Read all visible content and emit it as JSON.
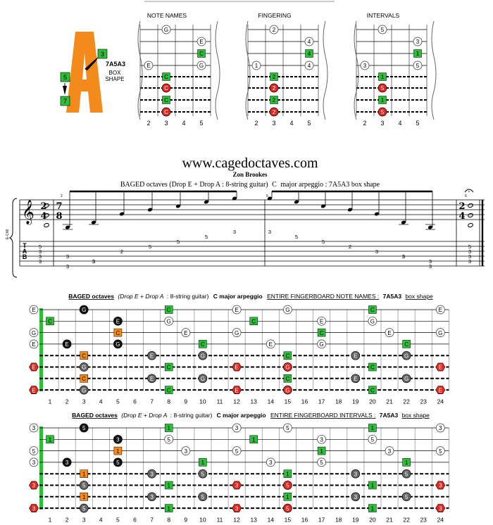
{
  "logo": {
    "letter": "A",
    "shape_name": "7A5A3",
    "box_line1": "BOX",
    "box_line2": "SHAPE",
    "markers": [
      "3",
      "5",
      "7"
    ]
  },
  "top_diagrams": {
    "headers": [
      "NOTE NAMES",
      "FINGERING",
      "INTERVALS"
    ],
    "fret_numbers": [
      "2",
      "3",
      "4",
      "5"
    ],
    "note_names": {
      "top": [
        "G",
        "E",
        "C",
        "G",
        "C",
        "C",
        "C",
        "C"
      ],
      "left": "E"
    },
    "fingering": {
      "top": [
        "2",
        "4",
        "4",
        "4",
        "2",
        "2",
        "2",
        "2"
      ],
      "left": "1"
    },
    "intervals": {
      "top": [
        "5",
        "3",
        "1",
        "5",
        "1",
        "5",
        "1",
        "5"
      ],
      "left": "3"
    }
  },
  "site": {
    "url": "www.cagedoctaves.com",
    "author": "Zon Brookes",
    "subtitle_part1": "BAGED octaves (Drop E + Drop A : 8-string guitar)",
    "subtitle_c": "C",
    "subtitle_part2": "major arpeggio : 7A5A3 box shape"
  },
  "notation": {
    "tuning_label": "E-C#8",
    "time_sig_start": [
      "2",
      "4"
    ],
    "time_sig_middle": [
      "7",
      "8"
    ],
    "time_sig_end": [
      "2",
      "4"
    ],
    "measure_numbers": [
      "2",
      "5",
      "6"
    ],
    "tab_letters": [
      "T",
      "A",
      "B"
    ],
    "tab_chord_start": [
      "5",
      "3",
      "3",
      "3"
    ],
    "tab_run_up": [
      "3",
      "3",
      "2",
      "5",
      "5",
      "5",
      "3"
    ],
    "tab_run_down": [
      "3",
      "5",
      "5",
      "2",
      "3",
      "3",
      "3"
    ],
    "tab_chord_end": [
      "5",
      "3",
      "3",
      "3"
    ]
  },
  "fingerboard_notes": {
    "title_bold": "BAGED octaves",
    "title_italic": "(Drop E + Drop A",
    "title_rest": ": 8-string guitar)",
    "title_arp": "C major arpeggio",
    "title_board": "ENTIRE FINGERBOARD NOTE NAMES :",
    "title_shape": "7A5A3",
    "title_tail": "box shape",
    "open_labels": [
      "E",
      "G",
      "E",
      "E",
      "E"
    ],
    "fret_numbers": [
      "1",
      "2",
      "3",
      "4",
      "5",
      "6",
      "7",
      "8",
      "9",
      "10",
      "11",
      "12",
      "13",
      "14",
      "15",
      "16",
      "17",
      "18",
      "19",
      "20",
      "21",
      "22",
      "23",
      "24"
    ]
  },
  "fingerboard_intervals": {
    "title_bold": "BAGED octaves",
    "title_italic": "(Drop E + Drop A",
    "title_rest": ": 8-string guitar)",
    "title_arp": "C major arpeggio",
    "title_board": "ENTIRE FINGERBOARD INTERVALS :",
    "title_shape": "7A5A3",
    "title_tail": "box shape",
    "open_labels": [
      "3",
      "5",
      "3",
      "3",
      "3"
    ],
    "fret_numbers": [
      "1",
      "2",
      "3",
      "4",
      "5",
      "6",
      "7",
      "8",
      "9",
      "10",
      "11",
      "12",
      "13",
      "14",
      "15",
      "16",
      "17",
      "18",
      "19",
      "20",
      "21",
      "22",
      "23",
      "24"
    ]
  },
  "colors": {
    "orange": "#f28a1c",
    "green": "#2dbf3a",
    "red": "#e3261e",
    "black": "#111111",
    "grey": "#666666"
  }
}
